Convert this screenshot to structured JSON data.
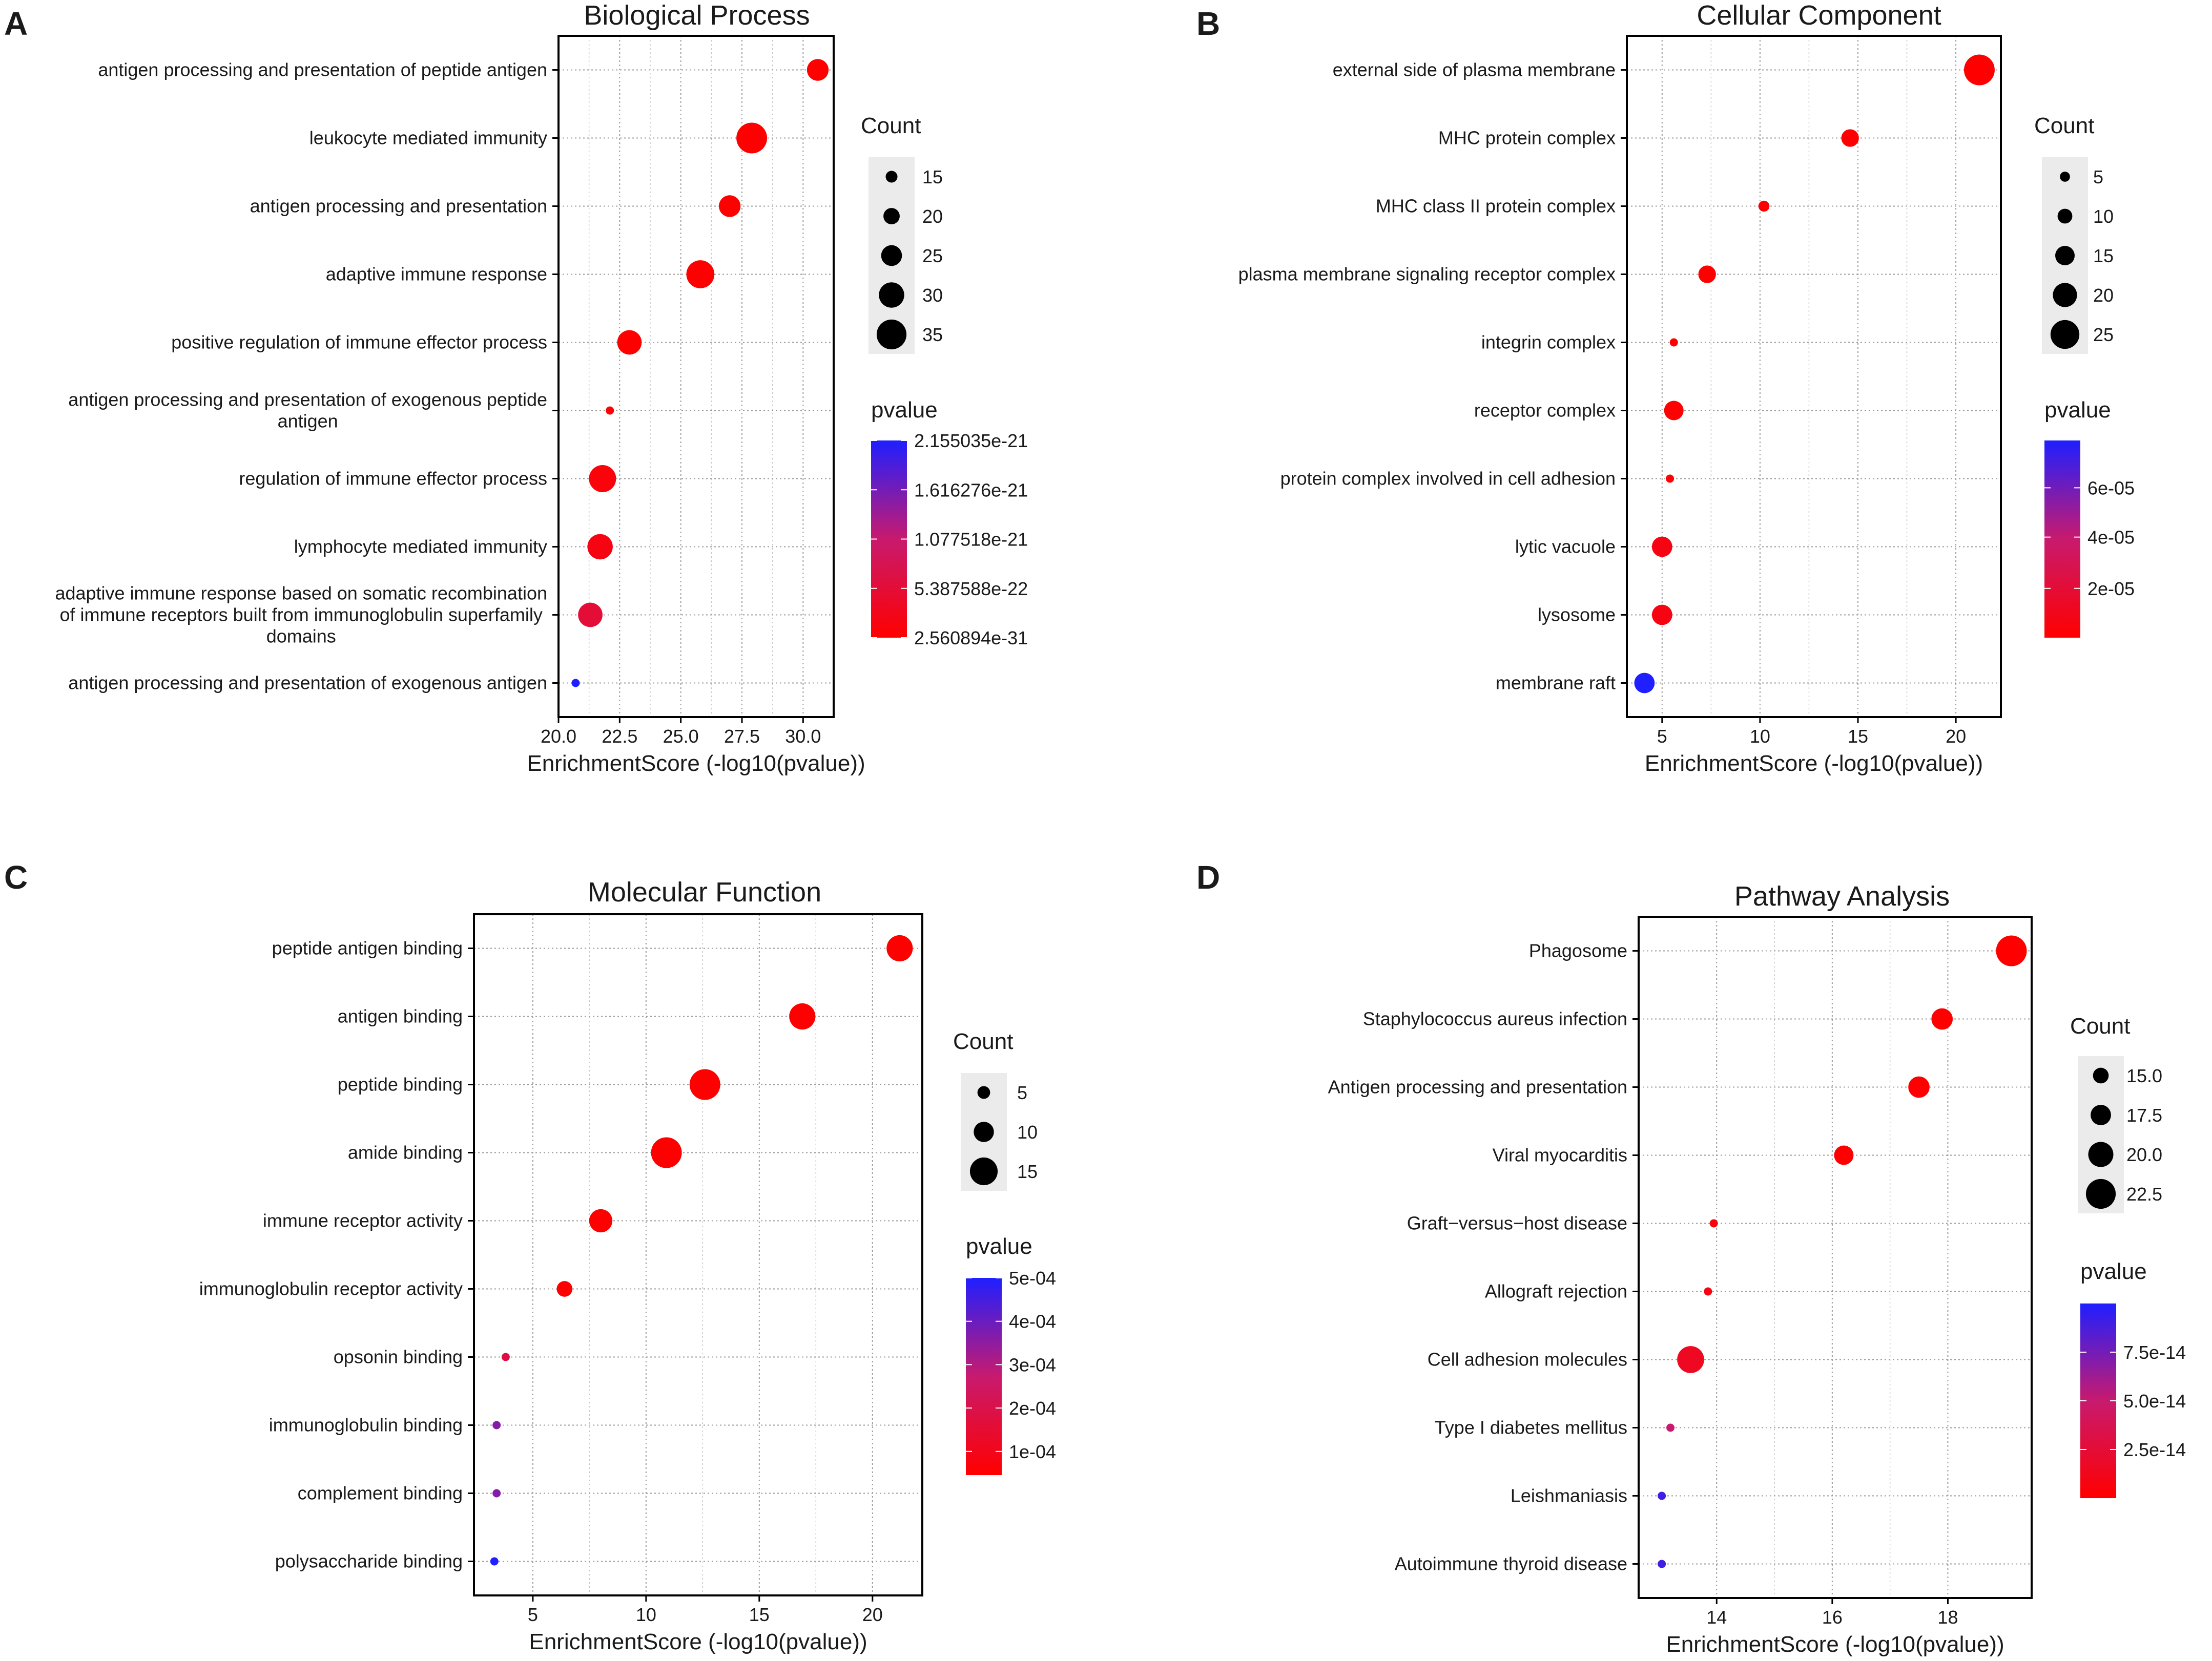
{
  "colors": {
    "low": "#ff0000",
    "mid": "#c81a6e",
    "high": "#1f1fff",
    "grid": "#9a9a9a",
    "legend_bg": "#ebebeb"
  },
  "chart_data": [
    {
      "type": "scatter",
      "letter": "A",
      "title": "Biological Process",
      "xlabel": "EnrichmentScore (-log10(pvalue))",
      "xlim": [
        20.0,
        31.25
      ],
      "xticks": [
        20.0,
        22.5,
        25.0,
        27.5,
        30.0
      ],
      "xtick_labels": [
        "20.0",
        "22.5",
        "25.0",
        "27.5",
        "30.0"
      ],
      "categories": [
        [
          "antigen processing and presentation of peptide antigen"
        ],
        [
          "leukocyte mediated immunity"
        ],
        [
          "antigen processing and presentation"
        ],
        [
          "adaptive immune response"
        ],
        [
          "positive regulation of immune effector process"
        ],
        [
          "antigen processing and presentation of exogenous peptide",
          "antigen"
        ],
        [
          "regulation of immune effector process"
        ],
        [
          "lymphocyte mediated immunity"
        ],
        [
          "adaptive immune response based on somatic recombination",
          "of immune receptors built from immunoglobulin superfamily",
          "domains"
        ],
        [
          "antigen processing and presentation of exogenous antigen"
        ]
      ],
      "x": [
        30.6,
        27.9,
        27.0,
        25.8,
        22.9,
        22.1,
        21.8,
        21.7,
        21.3,
        20.7
      ],
      "count": [
        26,
        36,
        26,
        33,
        29,
        11,
        32,
        30,
        29,
        11
      ],
      "pvalue_frac": [
        0.0,
        0.0,
        0.0,
        0.0,
        0.0,
        0.02,
        0.05,
        0.08,
        0.25,
        1.0
      ],
      "size_legend": {
        "title": "Count",
        "values": [
          15,
          20,
          25,
          30,
          35
        ],
        "labels": [
          "15",
          "20",
          "25",
          "30",
          "35"
        ],
        "range": [
          11,
          36
        ]
      },
      "color_legend": {
        "title": "pvalue",
        "labels": [
          "2.155035e-21",
          "1.616276e-21",
          "1.077518e-21",
          "5.387588e-22",
          "2.560894e-31"
        ],
        "label_fracs": [
          1.0,
          0.75,
          0.5,
          0.25,
          0.0
        ]
      }
    },
    {
      "type": "scatter",
      "letter": "B",
      "title": "Cellular Component",
      "xlabel": "EnrichmentScore (-log10(pvalue))",
      "xlim": [
        3.2,
        22.3
      ],
      "xticks": [
        5,
        10,
        15,
        20
      ],
      "xtick_labels": [
        "5",
        "10",
        "15",
        "20"
      ],
      "categories": [
        [
          "external side of plasma membrane"
        ],
        [
          "MHC protein complex"
        ],
        [
          "MHC class II protein complex"
        ],
        [
          "plasma membrane signaling receptor complex"
        ],
        [
          "integrin complex"
        ],
        [
          "receptor complex"
        ],
        [
          "protein complex involved in cell adhesion"
        ],
        [
          "lytic vacuole"
        ],
        [
          "lysosome"
        ],
        [
          "membrane raft"
        ]
      ],
      "x": [
        21.2,
        14.6,
        10.2,
        7.3,
        5.6,
        5.6,
        5.4,
        5.0,
        5.0,
        4.1
      ],
      "count": [
        27,
        13,
        6,
        13,
        3,
        15,
        3,
        16,
        16,
        16
      ],
      "pvalue_frac": [
        0.0,
        0.0,
        0.0,
        0.0,
        0.0,
        0.01,
        0.01,
        0.08,
        0.08,
        1.0
      ],
      "size_legend": {
        "title": "Count",
        "values": [
          5,
          10,
          15,
          20,
          25
        ],
        "labels": [
          "5",
          "10",
          "15",
          "20",
          "25"
        ],
        "range": [
          3,
          27
        ]
      },
      "color_legend": {
        "title": "pvalue",
        "labels": [
          "6e-05",
          "4e-05",
          "2e-05"
        ],
        "label_fracs": [
          0.76,
          0.51,
          0.25
        ]
      }
    },
    {
      "type": "scatter",
      "letter": "C",
      "title": "Molecular Function",
      "xlabel": "EnrichmentScore (-log10(pvalue))",
      "xlim": [
        2.4,
        22.2
      ],
      "xticks": [
        5,
        10,
        15,
        20
      ],
      "xtick_labels": [
        "5",
        "10",
        "15",
        "20"
      ],
      "categories": [
        [
          "peptide antigen binding"
        ],
        [
          "antigen binding"
        ],
        [
          "peptide binding"
        ],
        [
          "amide binding"
        ],
        [
          "immune receptor activity"
        ],
        [
          "immunoglobulin receptor activity"
        ],
        [
          "opsonin binding"
        ],
        [
          "immunoglobulin binding"
        ],
        [
          "complement binding"
        ],
        [
          "polysaccharide binding"
        ]
      ],
      "x": [
        21.2,
        16.9,
        12.6,
        10.9,
        8.0,
        6.4,
        3.8,
        3.4,
        3.4,
        3.3
      ],
      "count": [
        14,
        14,
        17,
        17,
        12,
        7,
        2,
        2,
        2,
        2
      ],
      "pvalue_frac": [
        0.0,
        0.0,
        0.0,
        0.0,
        0.0,
        0.0,
        0.3,
        0.7,
        0.7,
        1.0
      ],
      "size_legend": {
        "title": "Count",
        "values": [
          5,
          10,
          15
        ],
        "labels": [
          "5",
          "10",
          "15"
        ],
        "range": [
          2,
          17
        ]
      },
      "color_legend": {
        "title": "pvalue",
        "labels": [
          "5e-04",
          "4e-04",
          "3e-04",
          "2e-04",
          "1e-04"
        ],
        "label_fracs": [
          1.0,
          0.78,
          0.56,
          0.34,
          0.12
        ]
      }
    },
    {
      "type": "scatter",
      "letter": "D",
      "title": "Pathway Analysis",
      "xlabel": "EnrichmentScore (-log10(pvalue))",
      "xlim": [
        12.65,
        19.45
      ],
      "xticks": [
        14,
        16,
        18
      ],
      "xtick_labels": [
        "14",
        "16",
        "18"
      ],
      "categories": [
        [
          "Phagosome"
        ],
        [
          "Staphylococcus aureus infection"
        ],
        [
          "Antigen processing and presentation"
        ],
        [
          "Viral myocarditis"
        ],
        [
          "Graft−versus−host disease"
        ],
        [
          "Allograft rejection"
        ],
        [
          "Cell adhesion molecules"
        ],
        [
          "Type I diabetes mellitus"
        ],
        [
          "Leishmaniasis"
        ],
        [
          "Autoimmune thyroid disease"
        ]
      ],
      "x": [
        19.1,
        17.9,
        17.5,
        16.2,
        13.95,
        13.85,
        13.55,
        13.2,
        13.05,
        13.05
      ],
      "count": [
        23,
        18,
        18,
        17,
        11,
        11,
        21,
        11,
        11,
        11
      ],
      "pvalue_frac": [
        0.0,
        0.0,
        0.0,
        0.0,
        0.05,
        0.08,
        0.15,
        0.5,
        0.9,
        0.9
      ],
      "size_legend": {
        "title": "Count",
        "values": [
          15.0,
          17.5,
          20.0,
          22.5
        ],
        "labels": [
          "15.0",
          "17.5",
          "20.0",
          "22.5"
        ],
        "range": [
          11,
          23
        ]
      },
      "color_legend": {
        "title": "pvalue",
        "labels": [
          "7.5e-14",
          "5.0e-14",
          "2.5e-14"
        ],
        "label_fracs": [
          0.75,
          0.5,
          0.25
        ]
      }
    }
  ]
}
